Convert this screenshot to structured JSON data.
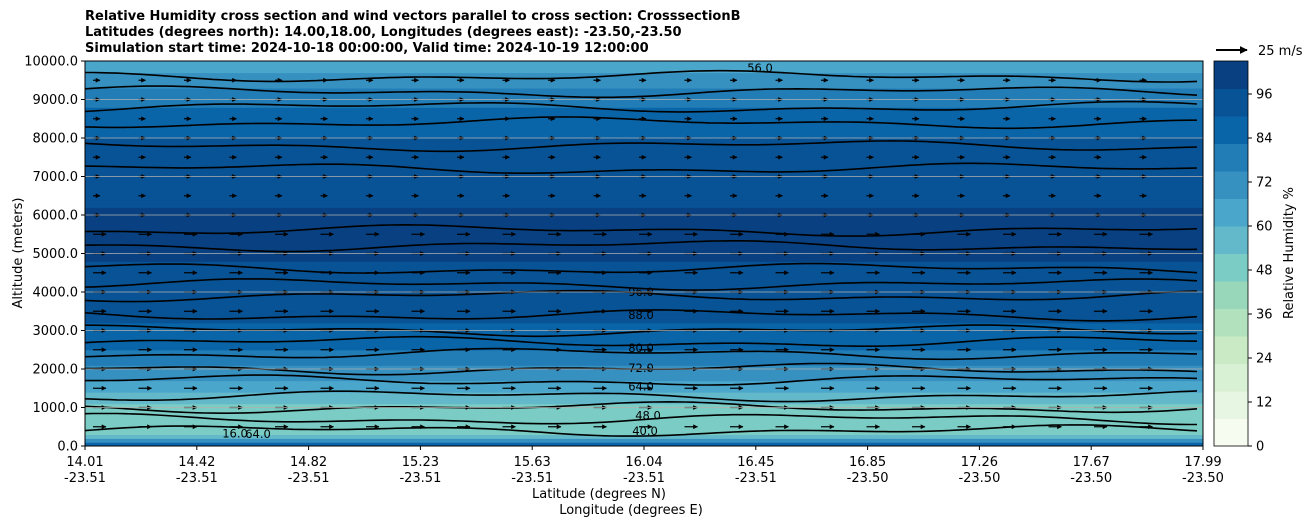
{
  "title": {
    "line1": "Relative Humidity cross section and wind vectors parallel to cross section: CrosssectionB",
    "line2": "Latitudes (degrees north): 14.00,18.00, Longitudes (degrees east): -23.50,-23.50",
    "line3": "Simulation start time: 2024-10-18 00:00:00, Valid time: 2024-10-19 12:00:00"
  },
  "colorbar": {
    "label": "Relative Humidity %",
    "ticks": [
      "0",
      "12",
      "24",
      "36",
      "48",
      "60",
      "72",
      "84",
      "96"
    ],
    "colors": [
      "#f7fcf0",
      "#e7f6e2",
      "#d8f0d3",
      "#c9eac4",
      "#b2e1be",
      "#98d7ba",
      "#7bccc4",
      "#63b9c9",
      "#4ba6cb",
      "#3690c0",
      "#227cb6",
      "#0a65a8",
      "#085395",
      "#084081"
    ]
  },
  "quiver_key": {
    "label": "25 m/s"
  },
  "chart_data": {
    "type": "heatmap",
    "title": "Relative Humidity cross section and wind vectors parallel to cross section: CrosssectionB",
    "xlabel": "Latitude (degrees N)",
    "xlabel2": "Longitude (degrees E)",
    "ylabel": "Altitude (meters)",
    "ylim": [
      0,
      10000
    ],
    "grid": "horizontal",
    "x_ticks": [
      {
        "lat": "14.01",
        "lon": "-23.51"
      },
      {
        "lat": "14.42",
        "lon": "-23.51"
      },
      {
        "lat": "14.82",
        "lon": "-23.51"
      },
      {
        "lat": "15.23",
        "lon": "-23.51"
      },
      {
        "lat": "15.63",
        "lon": "-23.51"
      },
      {
        "lat": "16.04",
        "lon": "-23.51"
      },
      {
        "lat": "16.45",
        "lon": "-23.51"
      },
      {
        "lat": "16.85",
        "lon": "-23.50"
      },
      {
        "lat": "17.26",
        "lon": "-23.50"
      },
      {
        "lat": "17.67",
        "lon": "-23.50"
      },
      {
        "lat": "17.99",
        "lon": "-23.50"
      }
    ],
    "y_ticks": [
      "0.0",
      "1000.0",
      "2000.0",
      "3000.0",
      "4000.0",
      "5000.0",
      "6000.0",
      "7000.0",
      "8000.0",
      "9000.0",
      "10000.0"
    ],
    "altitude_m": [
      0,
      250,
      500,
      1000,
      1500,
      2000,
      2500,
      3000,
      3500,
      4000,
      5000,
      6000,
      7000,
      8000,
      8500,
      9000,
      9500,
      10000
    ],
    "rh_profile_percent": [
      92,
      55,
      45,
      50,
      62,
      74,
      82,
      88,
      92,
      95,
      98,
      98,
      95,
      90,
      86,
      80,
      72,
      62
    ],
    "contour_labels": [
      "96.0",
      "88.0",
      "80.0",
      "72.0",
      "64.0",
      "48.0",
      "56.0",
      "40.0",
      "16.0",
      "64.0"
    ]
  }
}
